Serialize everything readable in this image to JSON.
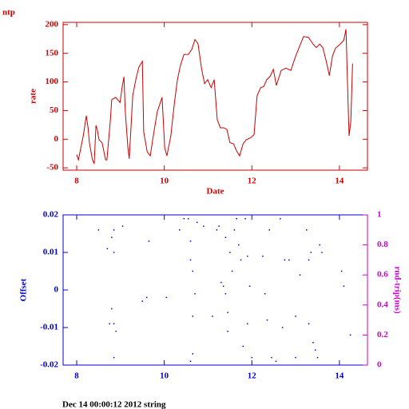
{
  "chart_data": [
    {
      "type": "line",
      "title": "ntp",
      "ylabel": "rate",
      "xlabel": "Date",
      "color": "#cc0000",
      "axis_color": "#cc0000",
      "xlim": [
        7.69,
        14.64
      ],
      "xticks": [
        8,
        10,
        12,
        14
      ],
      "ylim": [
        -54,
        204
      ],
      "yticks": [
        -50,
        0,
        50,
        100,
        150,
        200
      ],
      "x": [
        8.0,
        8.04,
        8.15,
        8.22,
        8.26,
        8.29,
        8.36,
        8.4,
        8.44,
        8.47,
        8.51,
        8.58,
        8.66,
        8.69,
        8.77,
        8.8,
        8.89,
        8.99,
        9.04,
        9.08,
        9.11,
        9.17,
        9.2,
        9.24,
        9.28,
        9.35,
        9.42,
        9.5,
        9.53,
        9.61,
        9.68,
        9.75,
        9.84,
        9.95,
        10.01,
        10.06,
        10.15,
        10.23,
        10.3,
        10.37,
        10.45,
        10.55,
        10.63,
        10.7,
        10.77,
        10.85,
        10.92,
        10.99,
        11.07,
        11.14,
        11.21,
        11.28,
        11.36,
        11.43,
        11.5,
        11.58,
        11.65,
        11.72,
        11.8,
        11.87,
        11.98,
        12.05,
        12.12,
        12.2,
        12.27,
        12.34,
        12.42,
        12.49,
        12.56,
        12.67,
        12.78,
        12.89,
        13.0,
        13.11,
        13.18,
        13.29,
        13.4,
        13.47,
        13.55,
        13.62,
        13.69,
        13.77,
        13.84,
        13.91,
        14.02,
        14.1,
        14.15,
        14.19,
        14.22,
        14.26,
        14.3
      ],
      "values": [
        -27,
        -36,
        6,
        41,
        20,
        -6,
        -36,
        -43,
        24,
        17,
        -1,
        -6,
        -36,
        -36,
        34,
        69,
        73,
        64,
        92,
        109,
        48,
        -15,
        -34,
        20,
        76,
        104,
        126,
        136,
        13,
        -22,
        -29,
        6,
        48,
        73,
        -15,
        -29,
        6,
        62,
        104,
        129,
        148,
        148,
        157,
        174,
        167,
        124,
        97,
        104,
        90,
        104,
        34,
        20,
        20,
        17,
        -6,
        -8,
        -20,
        -29,
        -8,
        -1,
        3,
        8,
        76,
        90,
        92,
        104,
        110,
        122,
        94,
        120,
        124,
        120,
        145,
        166,
        179,
        178,
        166,
        160,
        166,
        160,
        139,
        111,
        145,
        159,
        166,
        173,
        192,
        83,
        6,
        31,
        132
      ]
    },
    {
      "type": "scatter",
      "ylabel": "Offset",
      "y2label": "rnd-trip(ms)",
      "color": "#0000cc",
      "axis_color": "#0000cc",
      "y2_color": "#cc00cc",
      "xlim": [
        7.69,
        14.64
      ],
      "xticks": [
        8,
        10,
        12,
        14
      ],
      "ylim": [
        -0.02,
        0.02
      ],
      "yticks": [
        -0.02,
        -0.01,
        0,
        0.01,
        0.02
      ],
      "y2lim": [
        0,
        1
      ],
      "y2ticks": [
        0,
        0.2,
        0.4,
        0.6,
        0.8,
        1
      ],
      "x": [
        8.5,
        8.7,
        8.85,
        8.8,
        8.85,
        8.8,
        8.75,
        8.85,
        8.9,
        8.85,
        9.05,
        9.5,
        9.6,
        9.65,
        10.05,
        10.35,
        10.45,
        10.55,
        10.6,
        10.6,
        10.65,
        10.7,
        10.65,
        10.65,
        10.6,
        10.75,
        10.9,
        11.1,
        11.2,
        11.25,
        11.3,
        11.35,
        11.4,
        11.4,
        11.45,
        11.45,
        11.5,
        11.55,
        11.6,
        11.65,
        11.7,
        11.75,
        11.8,
        11.85,
        11.9,
        11.9,
        11.95,
        12.0,
        12.25,
        12.3,
        12.35,
        12.4,
        12.45,
        12.55,
        12.65,
        12.7,
        12.75,
        12.85,
        13.0,
        13.0,
        13.1,
        13.25,
        13.3,
        13.3,
        13.35,
        13.4,
        13.45,
        13.5,
        13.55,
        13.6,
        14.05,
        14.1,
        14.25
      ],
      "values": [
        0.016,
        0.011,
        0.016,
        0.014,
        0.01,
        -0.005,
        -0.009,
        -0.009,
        -0.011,
        -0.018,
        0.017,
        -0.003,
        -0.002,
        0.013,
        -0.002,
        0.016,
        0.019,
        0.019,
        0.013,
        0.008,
        0.005,
        -0.001,
        -0.007,
        -0.017,
        -0.019,
        0.018,
        0.017,
        -0.007,
        0.016,
        0.017,
        0.002,
        0.001,
        -0.001,
        0.014,
        -0.006,
        -0.011,
        0.01,
        0.005,
        0.016,
        0.019,
        0.012,
        0.008,
        -0.015,
        0.019,
        0.009,
        -0.009,
        0.001,
        -0.018,
        0.009,
        -0.001,
        -0.008,
        0.016,
        -0.018,
        -0.019,
        0.019,
        -0.01,
        0.008,
        0.008,
        -0.007,
        -0.018,
        0.004,
        0.016,
        -0.009,
        0.008,
        0.01,
        -0.014,
        -0.016,
        -0.018,
        0.012,
        0.01,
        0.005,
        0.001,
        -0.012
      ]
    }
  ],
  "footer": "Dec 14 00:00:12 2012 string"
}
